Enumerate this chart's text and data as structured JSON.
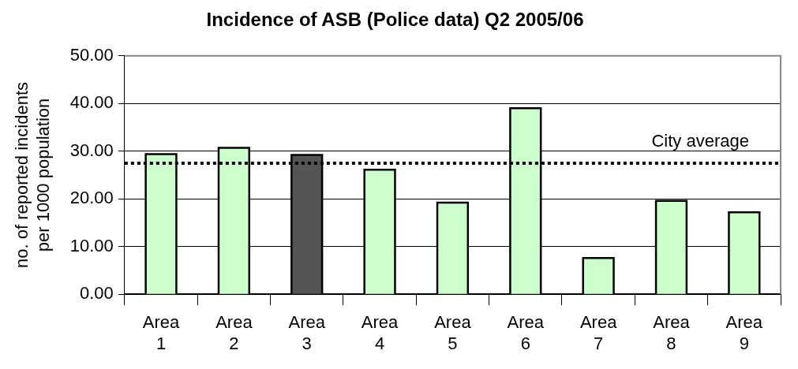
{
  "chart_data": {
    "type": "bar",
    "title": "Incidence of ASB (Police data) Q2 2005/06",
    "ylabel": "no. of reported incidents per 1000 population",
    "categories": [
      "Area 1",
      "Area 2",
      "Area 3",
      "Area 4",
      "Area 5",
      "Area 6",
      "Area 7",
      "Area 8",
      "Area 9"
    ],
    "values": [
      29.4,
      30.7,
      29.2,
      26.1,
      19.2,
      39.0,
      7.6,
      19.6,
      17.2
    ],
    "colors": [
      "#ccffcc",
      "#ccffcc",
      "#555555",
      "#ccffcc",
      "#ccffcc",
      "#ccffcc",
      "#ccffcc",
      "#ccffcc",
      "#ccffcc"
    ],
    "ylim": [
      0,
      50
    ],
    "yticks": [
      {
        "value": 0,
        "label": "0.00"
      },
      {
        "value": 10,
        "label": "10.00"
      },
      {
        "value": 20,
        "label": "20.00"
      },
      {
        "value": 30,
        "label": "30.00"
      },
      {
        "value": 40,
        "label": "40.00"
      },
      {
        "value": 50,
        "label": "50.00"
      }
    ],
    "grid": "y",
    "legend": false,
    "ref_lines": [
      {
        "axis": "y",
        "value": 27.5,
        "label": "City average",
        "color": "#000000",
        "line_style": "dotted"
      }
    ]
  }
}
